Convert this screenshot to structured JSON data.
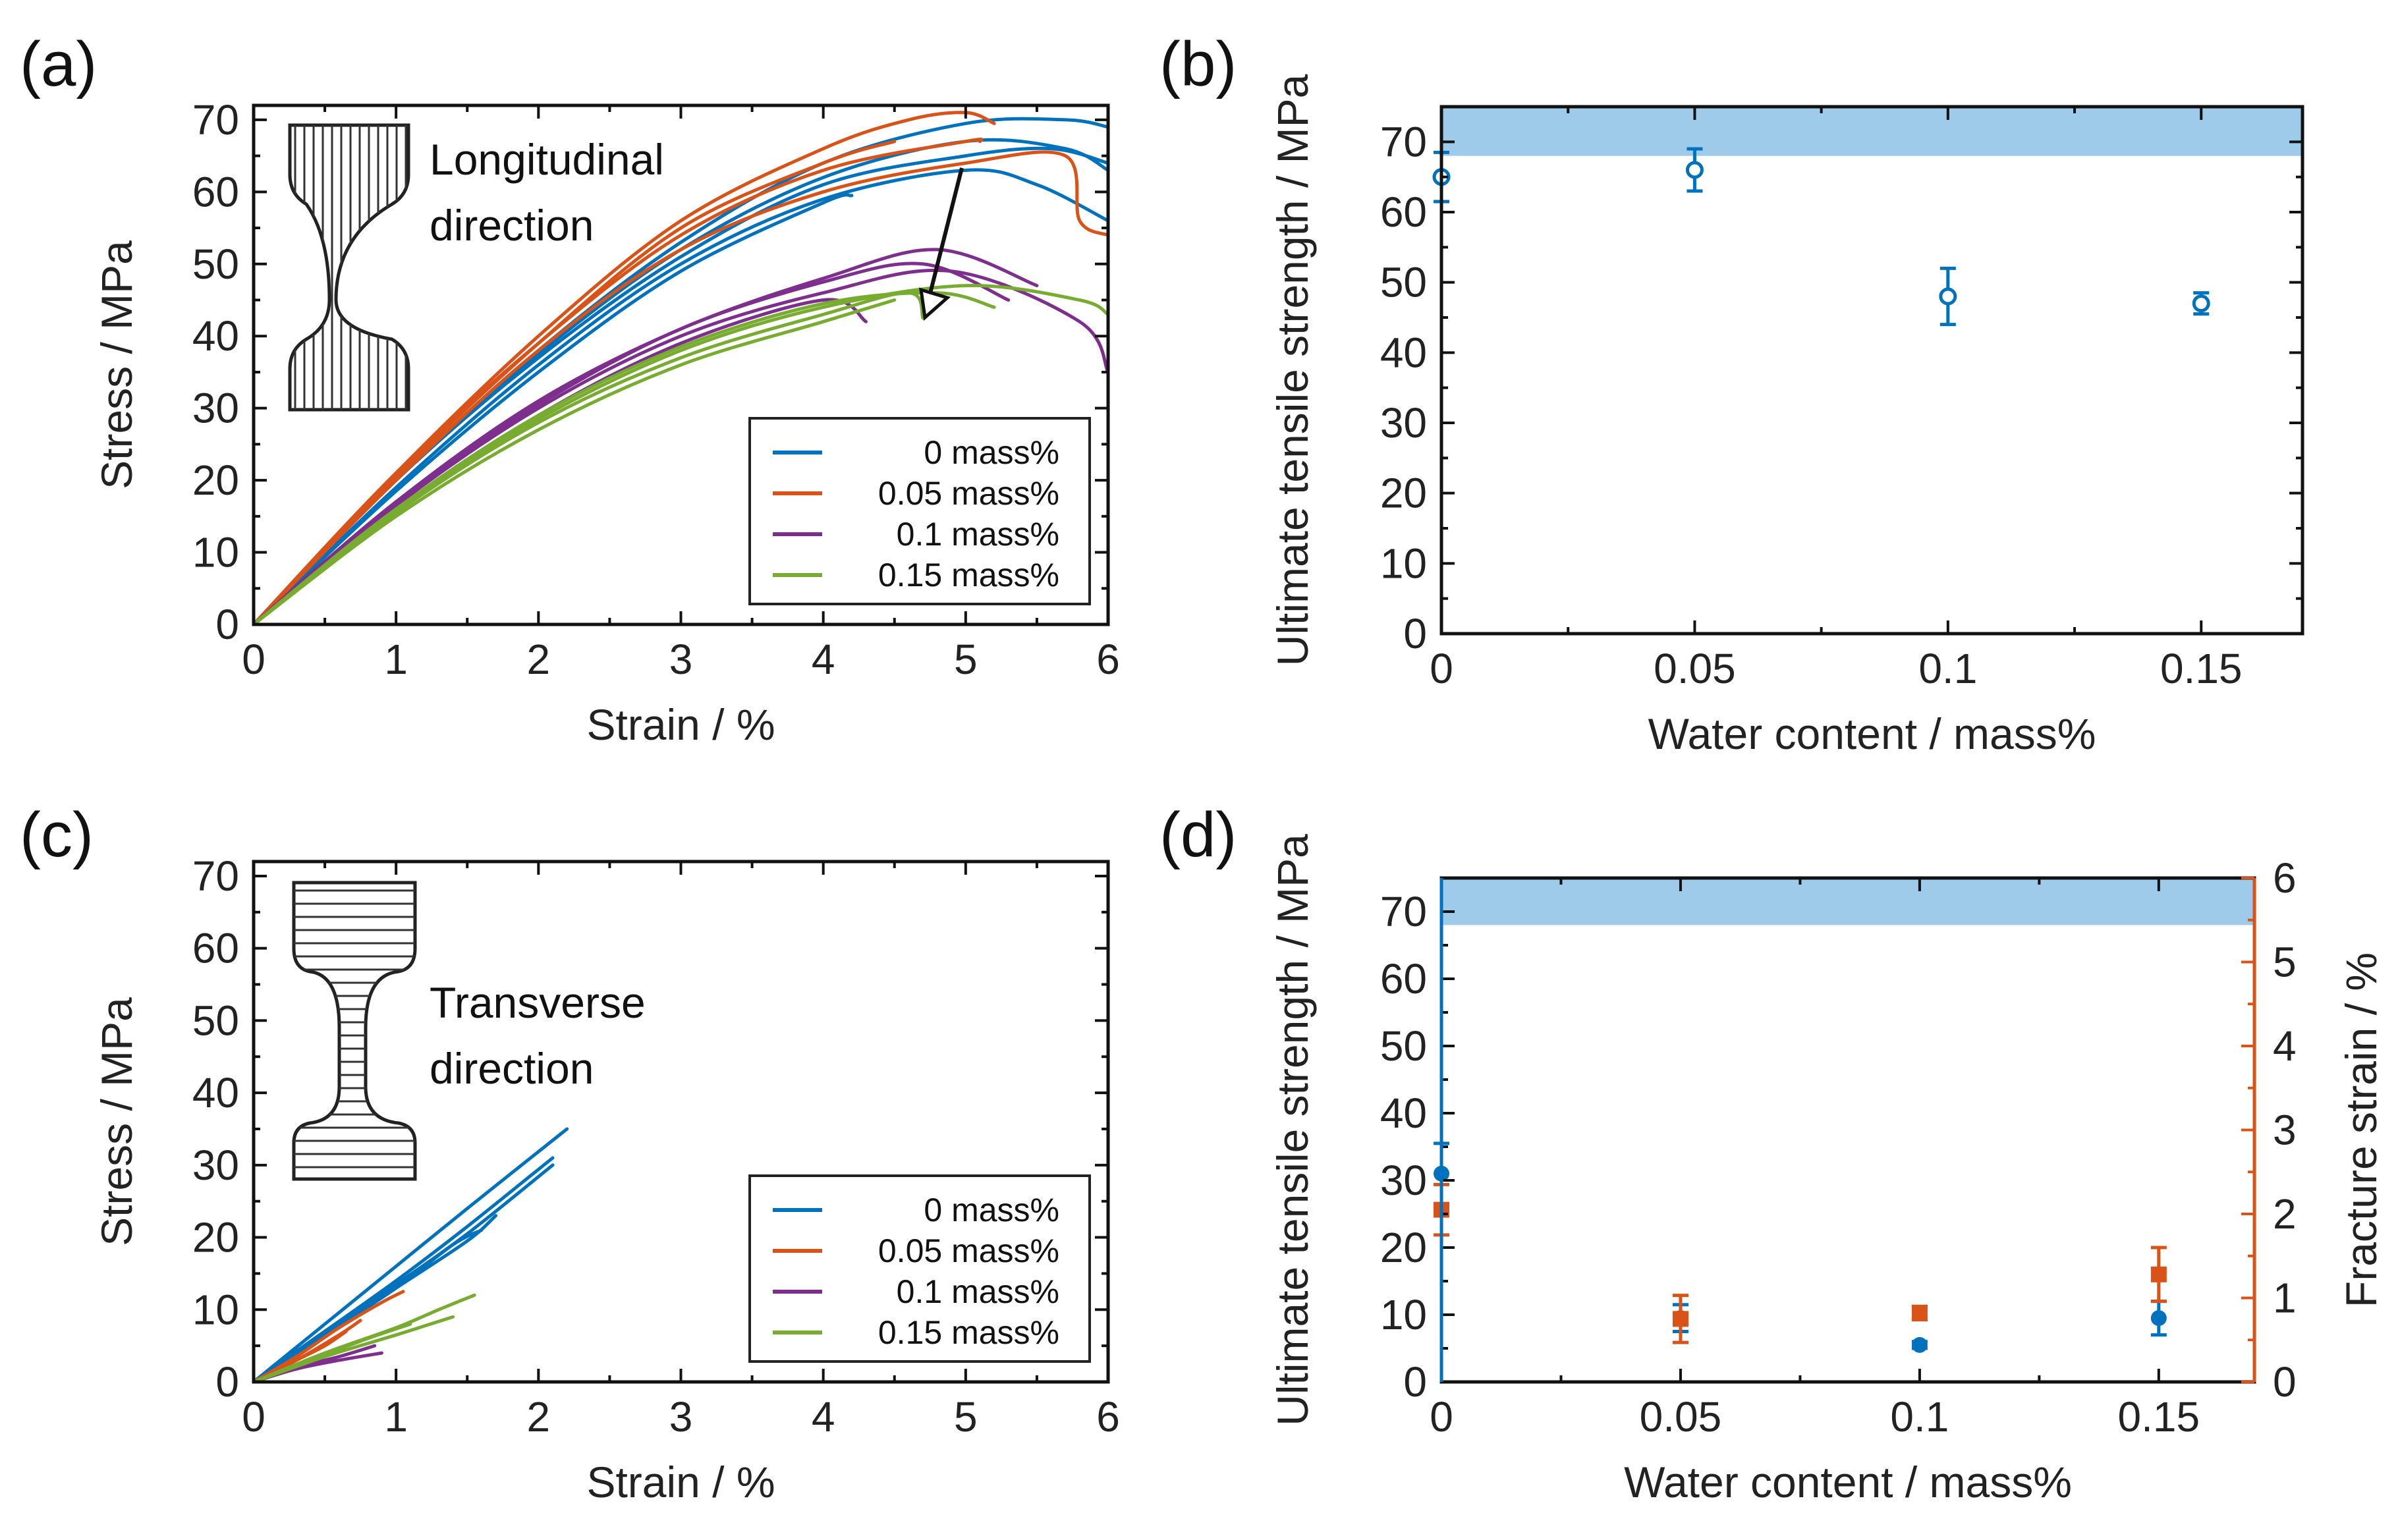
{
  "chart_data": [
    {
      "panel": "(a)",
      "type": "line",
      "xlabel": "Strain / %",
      "ylabel": "Stress / MPa",
      "xlim": [
        0,
        6
      ],
      "ylim": [
        0,
        72
      ],
      "xticks": [
        "0",
        "1",
        "2",
        "3",
        "4",
        "5",
        "6"
      ],
      "yticks": [
        "0",
        "10",
        "20",
        "30",
        "40",
        "50",
        "60",
        "70"
      ],
      "inset_text": [
        "Longitudinal",
        "direction"
      ],
      "legend": [
        "0 mass%",
        "0.05 mass%",
        "0.1 mass%",
        "0.15 mass%"
      ],
      "legend_position": "bottom-right",
      "annotation": "arrow pointing from upper curve group (~65 MPa) to lower curve group (~47 MPa)",
      "series": [
        {
          "name": "0 mass%",
          "color": "#0072BD",
          "curves": [
            [
              [
                0,
                0
              ],
              [
                1,
                20
              ],
              [
                2,
                37
              ],
              [
                3,
                51
              ],
              [
                4,
                61
              ],
              [
                5,
                65
              ],
              [
                5.6,
                66
              ],
              [
                6,
                64
              ]
            ],
            [
              [
                0,
                0
              ],
              [
                1,
                20
              ],
              [
                2,
                37.5
              ],
              [
                3,
                52
              ],
              [
                4,
                62
              ],
              [
                5,
                67
              ],
              [
                5.7,
                66
              ],
              [
                6,
                63
              ]
            ],
            [
              [
                0,
                0
              ],
              [
                1,
                19
              ],
              [
                2,
                36
              ],
              [
                3,
                50
              ],
              [
                4,
                59
              ],
              [
                5,
                63
              ],
              [
                5.5,
                61
              ],
              [
                6,
                56
              ]
            ],
            [
              [
                0,
                0
              ],
              [
                1,
                20
              ],
              [
                2,
                38
              ],
              [
                3,
                53
              ],
              [
                4,
                64
              ],
              [
                5,
                69.5
              ],
              [
                5.7,
                70
              ],
              [
                6,
                69
              ]
            ],
            [
              [
                0,
                0
              ],
              [
                1,
                18.5
              ],
              [
                2,
                35
              ],
              [
                3,
                49
              ],
              [
                4,
                58.5
              ],
              [
                4.2,
                59.5
              ]
            ]
          ]
        },
        {
          "name": "0.05 mass%",
          "color": "#D95319",
          "curves": [
            [
              [
                0,
                0
              ],
              [
                1,
                21
              ],
              [
                2,
                40
              ],
              [
                3,
                56
              ],
              [
                4,
                66
              ],
              [
                4.6,
                70
              ],
              [
                5,
                71
              ],
              [
                5.2,
                69.5
              ]
            ],
            [
              [
                0,
                0
              ],
              [
                1,
                20.5
              ],
              [
                2,
                39
              ],
              [
                3,
                55
              ],
              [
                4,
                64
              ],
              [
                4.5,
                67
              ]
            ],
            [
              [
                0,
                0
              ],
              [
                1,
                20
              ],
              [
                2,
                38
              ],
              [
                3,
                52
              ],
              [
                4,
                60
              ],
              [
                5,
                64
              ],
              [
                5.7,
                65
              ],
              [
                5.8,
                56
              ],
              [
                6,
                54
              ]
            ],
            [
              [
                0,
                0
              ],
              [
                1,
                21
              ],
              [
                2,
                39
              ],
              [
                3,
                54
              ],
              [
                4,
                63
              ],
              [
                5,
                67
              ],
              [
                5.1,
                67
              ]
            ]
          ]
        },
        {
          "name": "0.1 mass%",
          "color": "#7E2F8E",
          "curves": [
            [
              [
                0,
                0
              ],
              [
                1,
                17
              ],
              [
                2,
                31
              ],
              [
                3,
                41
              ],
              [
                4,
                48
              ],
              [
                4.8,
                52
              ],
              [
                5.5,
                47
              ]
            ],
            [
              [
                0,
                0
              ],
              [
                1,
                16.5
              ],
              [
                2,
                30
              ],
              [
                3,
                40
              ],
              [
                4,
                46
              ],
              [
                4.9,
                49
              ],
              [
                5.8,
                42
              ],
              [
                6,
                35
              ]
            ],
            [
              [
                0,
                0
              ],
              [
                1,
                16
              ],
              [
                2,
                29
              ],
              [
                3,
                39
              ],
              [
                4,
                45
              ],
              [
                4.3,
                42
              ]
            ],
            [
              [
                0,
                0
              ],
              [
                1,
                17
              ],
              [
                2,
                30.5
              ],
              [
                3,
                41
              ],
              [
                4,
                47.5
              ],
              [
                4.7,
                50
              ],
              [
                5.3,
                45
              ]
            ]
          ]
        },
        {
          "name": "0.15 mass%",
          "color": "#77AC30",
          "curves": [
            [
              [
                0,
                0
              ],
              [
                1,
                15.5
              ],
              [
                2,
                28
              ],
              [
                3,
                37
              ],
              [
                4,
                43
              ],
              [
                4.6,
                46
              ],
              [
                4.7,
                42.5
              ]
            ],
            [
              [
                0,
                0
              ],
              [
                1,
                16
              ],
              [
                2,
                28.5
              ],
              [
                3,
                38
              ],
              [
                4,
                44
              ],
              [
                5,
                47
              ],
              [
                5.8,
                45
              ],
              [
                6,
                43
              ]
            ],
            [
              [
                0,
                0
              ],
              [
                1,
                15
              ],
              [
                2,
                27
              ],
              [
                3,
                36
              ],
              [
                4,
                42
              ],
              [
                4.5,
                45
              ]
            ],
            [
              [
                0,
                0
              ],
              [
                1,
                16
              ],
              [
                2,
                29
              ],
              [
                3,
                38.5
              ],
              [
                4,
                44.5
              ],
              [
                4.8,
                46
              ],
              [
                5.2,
                44
              ]
            ]
          ]
        }
      ]
    },
    {
      "panel": "(b)",
      "type": "scatter",
      "xlabel": "Water content / mass%",
      "ylabel": "Ultimate tensile strength / MPa",
      "xlim": [
        0,
        0.17
      ],
      "ylim": [
        0,
        75
      ],
      "xticks": [
        "0",
        "0.05",
        "0.1",
        "0.15"
      ],
      "yticks": [
        "0",
        "10",
        "20",
        "30",
        "40",
        "50",
        "60",
        "70"
      ],
      "band": {
        "y_from": 68,
        "y_to": 75,
        "color": "#9ECBEA"
      },
      "series": [
        {
          "name": "Ultimate tensile strength",
          "color": "#0072BD",
          "x": [
            0,
            0.05,
            0.1,
            0.15
          ],
          "y": [
            65,
            66,
            48,
            47
          ],
          "err": [
            3.5,
            3,
            4,
            1.5
          ]
        }
      ]
    },
    {
      "panel": "(c)",
      "type": "line",
      "xlabel": "Strain / %",
      "ylabel": "Stress / MPa",
      "xlim": [
        0,
        6
      ],
      "ylim": [
        0,
        72
      ],
      "xticks": [
        "0",
        "1",
        "2",
        "3",
        "4",
        "5",
        "6"
      ],
      "yticks": [
        "0",
        "10",
        "20",
        "30",
        "40",
        "50",
        "60",
        "70"
      ],
      "inset_text": [
        "Transverse",
        "direction"
      ],
      "legend": [
        "0 mass%",
        "0.05 mass%",
        "0.1 mass%",
        "0.15 mass%"
      ],
      "legend_position": "bottom-right",
      "series": [
        {
          "name": "0 mass%",
          "color": "#0072BD",
          "curves": [
            [
              [
                0,
                0
              ],
              [
                0.5,
                8
              ],
              [
                1,
                16
              ],
              [
                1.5,
                24
              ],
              [
                2.2,
                35
              ]
            ],
            [
              [
                0,
                0
              ],
              [
                0.5,
                7
              ],
              [
                1,
                14
              ],
              [
                1.5,
                21.5
              ],
              [
                2.1,
                31
              ]
            ],
            [
              [
                0,
                0
              ],
              [
                0.5,
                7
              ],
              [
                1,
                13.5
              ],
              [
                1.5,
                20.5
              ],
              [
                2.1,
                30
              ]
            ],
            [
              [
                0,
                0
              ],
              [
                0.5,
                6.5
              ],
              [
                1,
                13
              ],
              [
                1.4,
                19
              ],
              [
                1.6,
                21
              ]
            ],
            [
              [
                0,
                0
              ],
              [
                0.5,
                6.5
              ],
              [
                1,
                13
              ],
              [
                1.5,
                19.5
              ],
              [
                1.7,
                23
              ]
            ]
          ]
        },
        {
          "name": "0.05 mass%",
          "color": "#D95319",
          "curves": [
            [
              [
                0,
                0
              ],
              [
                0.3,
                3.5
              ],
              [
                0.6,
                7.5
              ],
              [
                0.9,
                11
              ],
              [
                1.05,
                12.5
              ]
            ],
            [
              [
                0,
                0
              ],
              [
                0.3,
                3
              ],
              [
                0.6,
                6.5
              ],
              [
                0.75,
                8.5
              ]
            ],
            [
              [
                0,
                0
              ],
              [
                0.3,
                3
              ],
              [
                0.5,
                5
              ],
              [
                0.65,
                7
              ]
            ]
          ]
        },
        {
          "name": "0.1 mass%",
          "color": "#7E2F8E",
          "curves": [
            [
              [
                0,
                0
              ],
              [
                0.3,
                2
              ],
              [
                0.6,
                3.5
              ],
              [
                0.85,
                5
              ]
            ],
            [
              [
                0,
                0
              ],
              [
                0.3,
                1.8
              ],
              [
                0.6,
                3
              ],
              [
                0.9,
                4
              ]
            ]
          ]
        },
        {
          "name": "0.15 mass%",
          "color": "#77AC30",
          "curves": [
            [
              [
                0,
                0
              ],
              [
                0.5,
                4
              ],
              [
                1,
                7.5
              ],
              [
                1.3,
                10
              ],
              [
                1.55,
                12
              ]
            ],
            [
              [
                0,
                0
              ],
              [
                0.5,
                3.5
              ],
              [
                1,
                6.5
              ],
              [
                1.4,
                9
              ]
            ],
            [
              [
                0,
                0
              ],
              [
                0.4,
                3
              ],
              [
                0.8,
                6
              ],
              [
                1.1,
                8
              ]
            ]
          ]
        }
      ]
    },
    {
      "panel": "(d)",
      "type": "scatter",
      "xlabel": "Water content / mass%",
      "ylabel": "Ultimate tensile strength / MPa",
      "ylabel_right": "Fracture strain / %",
      "xlim": [
        0,
        0.17
      ],
      "ylim": [
        0,
        75
      ],
      "ylim_right": [
        0,
        6
      ],
      "xticks": [
        "0",
        "0.05",
        "0.1",
        "0.15"
      ],
      "yticks": [
        "0",
        "10",
        "20",
        "30",
        "40",
        "50",
        "60",
        "70"
      ],
      "yticks_right": [
        "0",
        "1",
        "2",
        "3",
        "4",
        "5",
        "6"
      ],
      "band": {
        "y_from": 68,
        "y_to": 75,
        "color": "#9ECBEA"
      },
      "series": [
        {
          "name": "Ultimate tensile strength",
          "axis": "left",
          "color": "#0072BD",
          "marker": "circle",
          "x": [
            0,
            0.05,
            0.1,
            0.15
          ],
          "y": [
            31,
            9.5,
            5.5,
            9.5
          ],
          "err": [
            4.5,
            2,
            0.5,
            2.5
          ]
        },
        {
          "name": "Fracture strain",
          "axis": "right",
          "color": "#D95319",
          "marker": "square",
          "x": [
            0,
            0.05,
            0.1,
            0.15
          ],
          "y": [
            2.05,
            0.75,
            0.82,
            1.28
          ],
          "err": [
            0.3,
            0.28,
            0.08,
            0.32
          ]
        }
      ]
    }
  ]
}
